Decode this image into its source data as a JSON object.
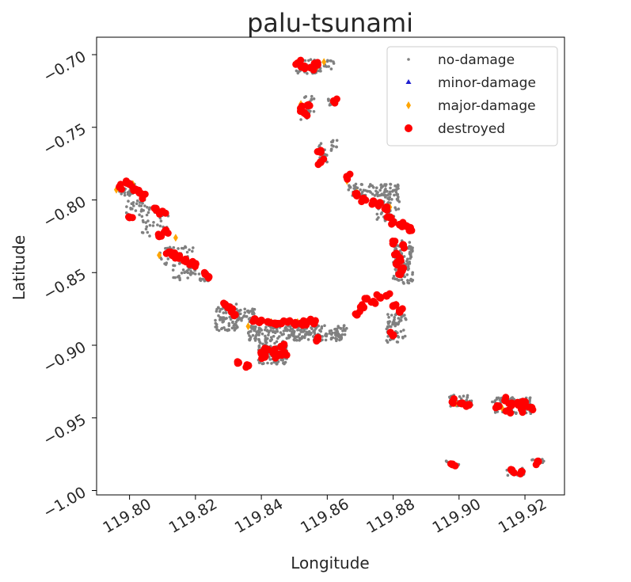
{
  "chart_data": {
    "type": "scatter",
    "title": "palu-tsunami",
    "xlabel": "Longitude",
    "ylabel": "Latitude",
    "xlim": [
      119.79,
      119.932
    ],
    "ylim": [
      -1.003,
      -0.688
    ],
    "xticks": [
      119.8,
      119.82,
      119.84,
      119.86,
      119.88,
      119.9,
      119.92
    ],
    "xtick_labels": [
      "119.80",
      "119.82",
      "119.84",
      "119.86",
      "119.88",
      "119.90",
      "119.92"
    ],
    "yticks": [
      -0.7,
      -0.75,
      -0.8,
      -0.85,
      -0.9,
      -0.95,
      -1.0
    ],
    "ytick_labels": [
      "−0.70",
      "−0.75",
      "−0.80",
      "−0.85",
      "−0.90",
      "−0.95",
      "−1.00"
    ],
    "grid": false,
    "legend_position": "top-right",
    "series": [
      {
        "name": "no-damage",
        "color": "#808080",
        "marker": "dot",
        "clusters": [
          {
            "x": [
              119.796,
              119.802
            ],
            "y": [
              -0.797,
              -0.788
            ],
            "n": 40
          },
          {
            "x": [
              119.799,
              119.806
            ],
            "y": [
              -0.813,
              -0.8
            ],
            "n": 30
          },
          {
            "x": [
              119.803,
              119.812
            ],
            "y": [
              -0.825,
              -0.805
            ],
            "n": 30
          },
          {
            "x": [
              119.809,
              119.82
            ],
            "y": [
              -0.845,
              -0.832
            ],
            "n": 40
          },
          {
            "x": [
              119.813,
              119.82
            ],
            "y": [
              -0.855,
              -0.845
            ],
            "n": 30
          },
          {
            "x": [
              119.821,
              119.825
            ],
            "y": [
              -0.856,
              -0.85
            ],
            "n": 15
          },
          {
            "x": [
              119.826,
              119.833
            ],
            "y": [
              -0.89,
              -0.871
            ],
            "n": 80
          },
          {
            "x": [
              119.832,
              119.838
            ],
            "y": [
              -0.884,
              -0.875
            ],
            "n": 40
          },
          {
            "x": [
              119.836,
              119.866
            ],
            "y": [
              -0.897,
              -0.886
            ],
            "n": 240
          },
          {
            "x": [
              119.839,
              119.848
            ],
            "y": [
              -0.913,
              -0.897
            ],
            "n": 100
          },
          {
            "x": [
              119.85,
              119.858
            ],
            "y": [
              -0.713,
              -0.703
            ],
            "n": 60
          },
          {
            "x": [
              119.859,
              119.862
            ],
            "y": [
              -0.71,
              -0.703
            ],
            "n": 12
          },
          {
            "x": [
              119.852,
              119.856
            ],
            "y": [
              -0.745,
              -0.727
            ],
            "n": 20
          },
          {
            "x": [
              119.857,
              119.86
            ],
            "y": [
              -0.774,
              -0.76
            ],
            "n": 20
          },
          {
            "x": [
              119.861,
              119.863
            ],
            "y": [
              -0.766,
              -0.758
            ],
            "n": 12
          },
          {
            "x": [
              119.86,
              119.863
            ],
            "y": [
              -0.735,
              -0.73
            ],
            "n": 8
          },
          {
            "x": [
              119.866,
              119.882
            ],
            "y": [
              -0.797,
              -0.789
            ],
            "n": 90
          },
          {
            "x": [
              119.875,
              119.882
            ],
            "y": [
              -0.815,
              -0.797
            ],
            "n": 50
          },
          {
            "x": [
              119.88,
              119.886
            ],
            "y": [
              -0.858,
              -0.828
            ],
            "n": 110
          },
          {
            "x": [
              119.878,
              119.884
            ],
            "y": [
              -0.898,
              -0.878
            ],
            "n": 70
          },
          {
            "x": [
              119.897,
              119.904
            ],
            "y": [
              -0.942,
              -0.934
            ],
            "n": 40
          },
          {
            "x": [
              119.91,
              119.922
            ],
            "y": [
              -0.947,
              -0.936
            ],
            "n": 90
          },
          {
            "x": [
              119.896,
              119.9
            ],
            "y": [
              -0.984,
              -0.979
            ],
            "n": 10
          },
          {
            "x": [
              119.914,
              119.92
            ],
            "y": [
              -0.99,
              -0.984
            ],
            "n": 18
          },
          {
            "x": [
              119.922,
              119.926
            ],
            "y": [
              -0.983,
              -0.978
            ],
            "n": 10
          }
        ]
      },
      {
        "name": "minor-damage",
        "color": "#1f1fd0",
        "marker": "triangle",
        "points": []
      },
      {
        "name": "major-damage",
        "color": "#ffa500",
        "marker": "diamond",
        "points": [
          [
            119.796,
            -0.793
          ],
          [
            119.801,
            -0.789
          ],
          [
            119.808,
            -0.806
          ],
          [
            119.809,
            -0.838
          ],
          [
            119.814,
            -0.826
          ],
          [
            119.836,
            -0.887
          ],
          [
            119.843,
            -0.884
          ],
          [
            119.852,
            -0.734
          ],
          [
            119.857,
            -0.708
          ],
          [
            119.859,
            -0.705
          ],
          [
            119.866,
            -0.787
          ],
          [
            119.869,
            -0.795
          ],
          [
            119.879,
            -0.805
          ],
          [
            119.899,
            -0.94
          ],
          [
            119.913,
            -0.943
          ],
          [
            119.919,
            -0.94
          ],
          [
            119.881,
            -0.872
          ],
          [
            119.851,
            -0.884
          ]
        ]
      },
      {
        "name": "destroyed",
        "color": "#ff0000",
        "marker": "circle",
        "points": [
          [
            119.797,
            -0.791
          ],
          [
            119.799,
            -0.788
          ],
          [
            119.8,
            -0.789
          ],
          [
            119.802,
            -0.793
          ],
          [
            119.803,
            -0.795
          ],
          [
            119.804,
            -0.797
          ],
          [
            119.8,
            -0.812
          ],
          [
            119.808,
            -0.806
          ],
          [
            119.81,
            -0.808
          ],
          [
            119.809,
            -0.825
          ],
          [
            119.811,
            -0.821
          ],
          [
            119.812,
            -0.836
          ],
          [
            119.813,
            -0.838
          ],
          [
            119.815,
            -0.84
          ],
          [
            119.817,
            -0.841
          ],
          [
            119.819,
            -0.844
          ],
          [
            119.82,
            -0.844
          ],
          [
            119.823,
            -0.851
          ],
          [
            119.824,
            -0.853
          ],
          [
            119.829,
            -0.872
          ],
          [
            119.83,
            -0.874
          ],
          [
            119.831,
            -0.877
          ],
          [
            119.832,
            -0.879
          ],
          [
            119.838,
            -0.882
          ],
          [
            119.84,
            -0.883
          ],
          [
            119.842,
            -0.884
          ],
          [
            119.844,
            -0.885
          ],
          [
            119.846,
            -0.885
          ],
          [
            119.848,
            -0.884
          ],
          [
            119.85,
            -0.885
          ],
          [
            119.852,
            -0.885
          ],
          [
            119.854,
            -0.884
          ],
          [
            119.856,
            -0.885
          ],
          [
            119.857,
            -0.896
          ],
          [
            119.833,
            -0.912
          ],
          [
            119.836,
            -0.914
          ],
          [
            119.84,
            -0.905
          ],
          [
            119.842,
            -0.903
          ],
          [
            119.844,
            -0.904
          ],
          [
            119.846,
            -0.901
          ],
          [
            119.841,
            -0.908
          ],
          [
            119.845,
            -0.907
          ],
          [
            119.847,
            -0.905
          ],
          [
            119.851,
            -0.706
          ],
          [
            119.853,
            -0.708
          ],
          [
            119.855,
            -0.709
          ],
          [
            119.857,
            -0.707
          ],
          [
            119.852,
            -0.737
          ],
          [
            119.853,
            -0.74
          ],
          [
            119.854,
            -0.735
          ],
          [
            119.858,
            -0.767
          ],
          [
            119.858,
            -0.774
          ],
          [
            119.862,
            -0.732
          ],
          [
            119.866,
            -0.784
          ],
          [
            119.869,
            -0.797
          ],
          [
            119.871,
            -0.799
          ],
          [
            119.874,
            -0.801
          ],
          [
            119.876,
            -0.802
          ],
          [
            119.878,
            -0.805
          ],
          [
            119.879,
            -0.812
          ],
          [
            119.88,
            -0.815
          ],
          [
            119.882,
            -0.817
          ],
          [
            119.884,
            -0.818
          ],
          [
            119.885,
            -0.821
          ],
          [
            119.88,
            -0.83
          ],
          [
            119.883,
            -0.831
          ],
          [
            119.881,
            -0.837
          ],
          [
            119.882,
            -0.84
          ],
          [
            119.881,
            -0.844
          ],
          [
            119.883,
            -0.847
          ],
          [
            119.882,
            -0.851
          ],
          [
            119.872,
            -0.868
          ],
          [
            119.874,
            -0.87
          ],
          [
            119.876,
            -0.867
          ],
          [
            119.878,
            -0.866
          ],
          [
            119.871,
            -0.874
          ],
          [
            119.869,
            -0.879
          ],
          [
            119.88,
            -0.873
          ],
          [
            119.882,
            -0.877
          ],
          [
            119.88,
            -0.893
          ],
          [
            119.898,
            -0.939
          ],
          [
            119.901,
            -0.94
          ],
          [
            119.903,
            -0.941
          ],
          [
            119.912,
            -0.942
          ],
          [
            119.914,
            -0.938
          ],
          [
            119.916,
            -0.94
          ],
          [
            119.918,
            -0.941
          ],
          [
            119.92,
            -0.939
          ],
          [
            119.922,
            -0.943
          ],
          [
            119.915,
            -0.945
          ],
          [
            119.919,
            -0.944
          ],
          [
            119.898,
            -0.982
          ],
          [
            119.916,
            -0.986
          ],
          [
            119.919,
            -0.987
          ],
          [
            119.924,
            -0.98
          ]
        ]
      }
    ]
  }
}
